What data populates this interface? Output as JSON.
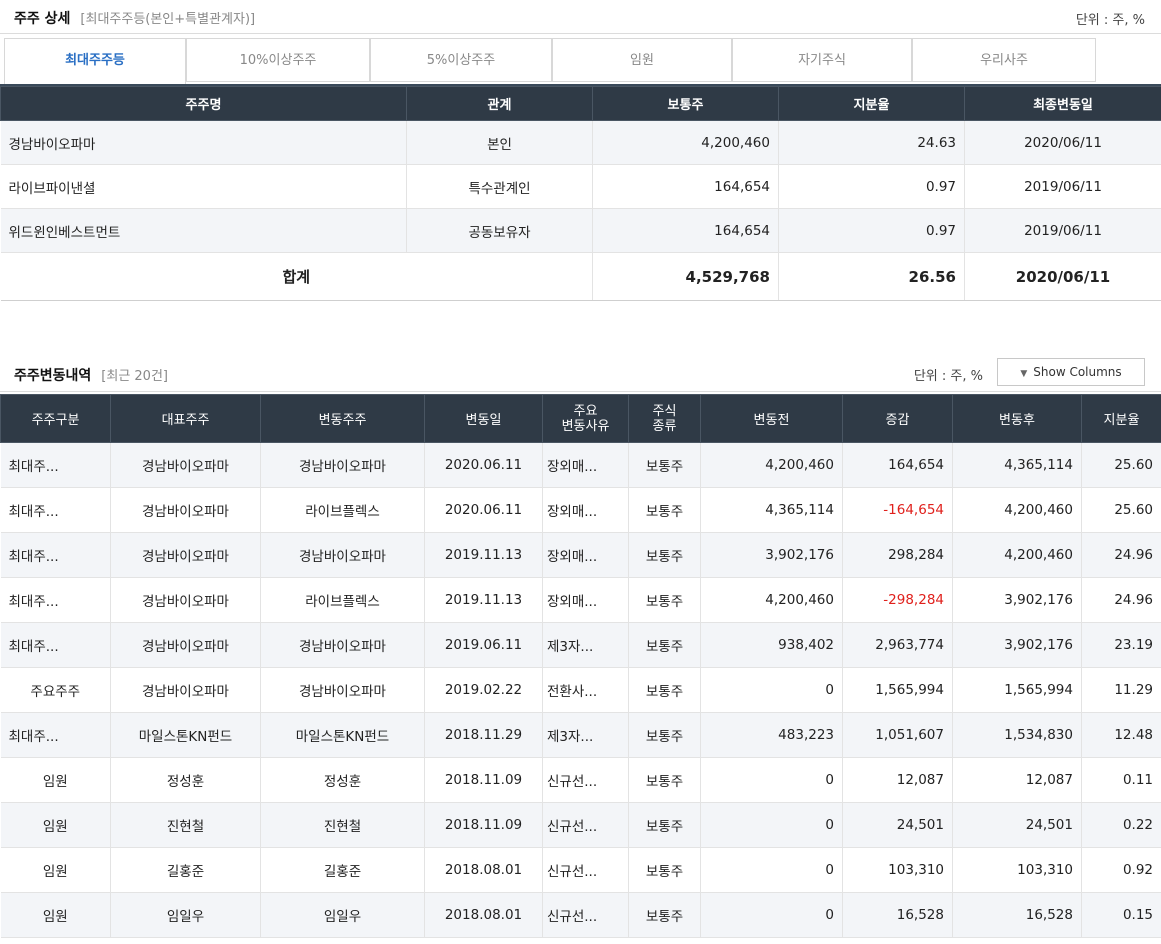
{
  "summary": {
    "title": "주주 상세",
    "subtitle": "[최대주주등(본인+특별관계자)]",
    "unit": "단위 : 주, %",
    "tabs": [
      "최대주주등",
      "10%이상주주",
      "5%이상주주",
      "임원",
      "자기주식",
      "우리사주"
    ],
    "active_tab": "최대주주등",
    "headers": [
      "주주명",
      "관계",
      "보통주",
      "지분율",
      "최종변동일"
    ],
    "rows": [
      [
        "경남바이오파마",
        "본인",
        "4,200,460",
        "24.63",
        "2020/06/11"
      ],
      [
        "라이브파이낸셜",
        "특수관계인",
        "164,654",
        "0.97",
        "2019/06/11"
      ],
      [
        "위드윈인베스트먼트",
        "공동보유자",
        "164,654",
        "0.97",
        "2019/06/11"
      ]
    ],
    "total": {
      "label": "합계",
      "shares": "4,529,768",
      "ratio": "26.56",
      "date": "2020/06/11"
    }
  },
  "changes": {
    "title": "주주변동내역",
    "subtitle": "[최근 20건]",
    "unit": "단위 : 주, %",
    "show_columns_label": "Show Columns",
    "headers": [
      "주주구분",
      "대표주주",
      "변동주주",
      "변동일",
      "주요\n변동사유",
      "주식\n종류",
      "변동전",
      "증감",
      "변동후",
      "지분율"
    ],
    "rows": [
      [
        "최대주...",
        "경남바이오파마",
        "경남바이오파마",
        "2020.06.11",
        "장외매...",
        "보통주",
        "4,200,460",
        "164,654",
        "4,365,114",
        "25.60"
      ],
      [
        "최대주...",
        "경남바이오파마",
        "라이브플렉스",
        "2020.06.11",
        "장외매...",
        "보통주",
        "4,365,114",
        "-164,654",
        "4,200,460",
        "25.60"
      ],
      [
        "최대주...",
        "경남바이오파마",
        "경남바이오파마",
        "2019.11.13",
        "장외매...",
        "보통주",
        "3,902,176",
        "298,284",
        "4,200,460",
        "24.96"
      ],
      [
        "최대주...",
        "경남바이오파마",
        "라이브플렉스",
        "2019.11.13",
        "장외매...",
        "보통주",
        "4,200,460",
        "-298,284",
        "3,902,176",
        "24.96"
      ],
      [
        "최대주...",
        "경남바이오파마",
        "경남바이오파마",
        "2019.06.11",
        "제3자...",
        "보통주",
        "938,402",
        "2,963,774",
        "3,902,176",
        "23.19"
      ],
      [
        "주요주주",
        "경남바이오파마",
        "경남바이오파마",
        "2019.02.22",
        "전환사...",
        "보통주",
        "0",
        "1,565,994",
        "1,565,994",
        "11.29"
      ],
      [
        "최대주...",
        "마일스톤KN펀드",
        "마일스톤KN펀드",
        "2018.11.29",
        "제3자...",
        "보통주",
        "483,223",
        "1,051,607",
        "1,534,830",
        "12.48"
      ],
      [
        "임원",
        "정성훈",
        "정성훈",
        "2018.11.09",
        "신규선...",
        "보통주",
        "0",
        "12,087",
        "12,087",
        "0.11"
      ],
      [
        "임원",
        "진현철",
        "진현철",
        "2018.11.09",
        "신규선...",
        "보통주",
        "0",
        "24,501",
        "24,501",
        "0.22"
      ],
      [
        "임원",
        "길홍준",
        "길홍준",
        "2018.08.01",
        "신규선...",
        "보통주",
        "0",
        "103,310",
        "103,310",
        "0.92"
      ],
      [
        "임원",
        "임일우",
        "임일우",
        "2018.08.01",
        "신규선...",
        "보통주",
        "0",
        "16,528",
        "16,528",
        "0.15"
      ]
    ]
  },
  "colors": {
    "header_bg": "#2f3a46",
    "active_tab": "#2a6fc4",
    "negative": "#e0201c",
    "alt_row": "#f3f5f8"
  }
}
